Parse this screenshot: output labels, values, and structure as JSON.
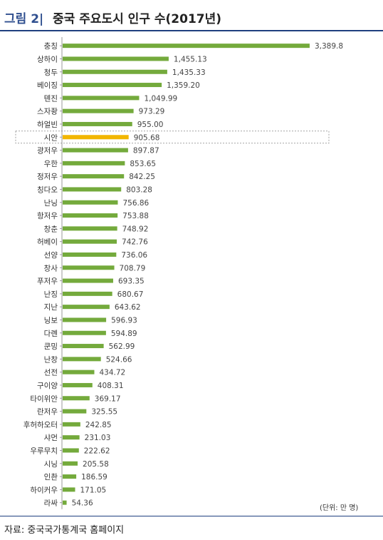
{
  "figure": {
    "label": "그림 2|",
    "title": "중국 주요도시 인구 수(2017년)",
    "unit_note": "(단위: 만 명)",
    "source": "자료: 중국국가통계국 홈페이지"
  },
  "colors": {
    "bar": "#74aa3c",
    "highlight": "#f2b600",
    "label_blue": "#2f4f8f",
    "rule": "#1f3f7f"
  },
  "chart_data": {
    "type": "bar",
    "orientation": "horizontal",
    "title": "중국 주요도시 인구 수(2017년)",
    "xlabel": "",
    "ylabel": "",
    "xlim": [
      0,
      3400
    ],
    "grid": false,
    "highlight": "시안",
    "categories": [
      "충칭",
      "상하이",
      "청두",
      "베이징",
      "톈진",
      "스자좡",
      "하얼빈",
      "시안",
      "광저우",
      "우한",
      "정저우",
      "칭다오",
      "난닝",
      "항저우",
      "창춘",
      "허베이",
      "선양",
      "창사",
      "푸저우",
      "난징",
      "지난",
      "닝보",
      "다롄",
      "쿤밍",
      "난창",
      "선전",
      "구이양",
      "타이위안",
      "란저우",
      "후허하오터",
      "샤먼",
      "우루무치",
      "시닝",
      "인촨",
      "하이커우",
      "라싸"
    ],
    "values": [
      3389.8,
      1455.13,
      1435.33,
      1359.2,
      1049.99,
      973.29,
      955.0,
      905.68,
      897.87,
      853.65,
      842.25,
      803.28,
      756.86,
      753.88,
      748.92,
      742.76,
      736.06,
      708.79,
      693.35,
      680.67,
      643.62,
      596.93,
      594.89,
      562.99,
      524.66,
      434.72,
      408.31,
      369.17,
      325.55,
      242.85,
      231.03,
      222.62,
      205.58,
      186.59,
      171.05,
      54.36
    ],
    "value_labels": [
      "3,389.8",
      "1,455.13",
      "1,435.33",
      "1,359.20",
      "1,049.99",
      "973.29",
      "955.00",
      "905.68",
      "897.87",
      "853.65",
      "842.25",
      "803.28",
      "756.86",
      "753.88",
      "748.92",
      "742.76",
      "736.06",
      "708.79",
      "693.35",
      "680.67",
      "643.62",
      "596.93",
      "594.89",
      "562.99",
      "524.66",
      "434.72",
      "408.31",
      "369.17",
      "325.55",
      "242.85",
      "231.03",
      "222.62",
      "205.58",
      "186.59",
      "171.05",
      "54.36"
    ]
  }
}
